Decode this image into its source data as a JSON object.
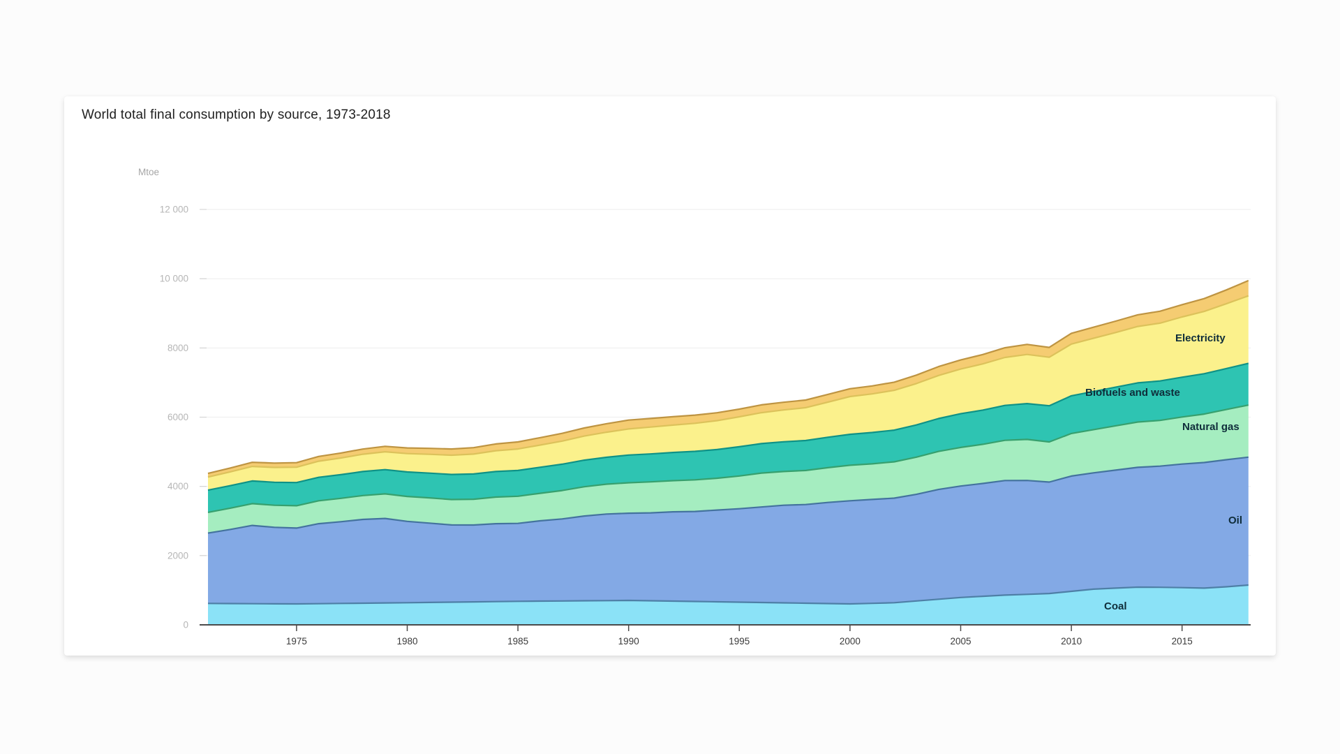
{
  "title": "World total final consumption by source, 1973-2018",
  "chart_data": {
    "type": "area",
    "stacked": true,
    "title": "World total final consumption by source, 1973-2018",
    "unit_label": "Mtoe",
    "grid": "horizontal-only",
    "legend_position": "inline-labels-on-areas",
    "x_start_year": 1971,
    "x_end_year": 2018,
    "xlim": [
      1971,
      2018
    ],
    "ylim": [
      0,
      12600
    ],
    "x_tick_years": [
      1975,
      1980,
      1985,
      1990,
      1995,
      2000,
      2005,
      2010,
      2015
    ],
    "y_ticks": [
      {
        "value": 0,
        "label": "0"
      },
      {
        "value": 2000,
        "label": "2000"
      },
      {
        "value": 4000,
        "label": "4000"
      },
      {
        "value": 6000,
        "label": "6000"
      },
      {
        "value": 8000,
        "label": "8000"
      },
      {
        "value": 10000,
        "label": "10 000"
      },
      {
        "value": 12000,
        "label": "12 000"
      }
    ],
    "years": [
      1971,
      1972,
      1973,
      1974,
      1975,
      1976,
      1977,
      1978,
      1979,
      1980,
      1981,
      1982,
      1983,
      1984,
      1985,
      1986,
      1987,
      1988,
      1989,
      1990,
      1991,
      1992,
      1993,
      1994,
      1995,
      1996,
      1997,
      1998,
      1999,
      2000,
      2001,
      2002,
      2003,
      2004,
      2005,
      2006,
      2007,
      2008,
      2009,
      2010,
      2011,
      2012,
      2013,
      2014,
      2015,
      2016,
      2017,
      2018
    ],
    "series": [
      {
        "name": "Coal",
        "fill": "#8BE2F7",
        "stroke": "#4E7FA6",
        "values": [
          620,
          616,
          612,
          608,
          605,
          612,
          619,
          626,
          633,
          640,
          648,
          656,
          664,
          672,
          680,
          685,
          690,
          695,
          700,
          705,
          695,
          685,
          675,
          665,
          655,
          645,
          635,
          625,
          615,
          605,
          622,
          640,
          690,
          740,
          790,
          825,
          860,
          882,
          905,
          968,
          1030,
          1060,
          1090,
          1085,
          1075,
          1060,
          1100,
          1150
        ]
      },
      {
        "name": "Oil",
        "fill": "#83A9E5",
        "stroke": "#44739E",
        "values": [
          2030,
          2140,
          2260,
          2210,
          2190,
          2310,
          2360,
          2420,
          2440,
          2350,
          2290,
          2230,
          2220,
          2250,
          2250,
          2320,
          2370,
          2450,
          2500,
          2520,
          2540,
          2580,
          2600,
          2650,
          2700,
          2760,
          2820,
          2850,
          2920,
          2980,
          3000,
          3020,
          3080,
          3170,
          3220,
          3260,
          3310,
          3290,
          3220,
          3330,
          3360,
          3410,
          3460,
          3500,
          3570,
          3630,
          3670,
          3695
        ]
      },
      {
        "name": "Natural gas",
        "fill": "#A5EDC0",
        "stroke": "#37A06E",
        "values": [
          600,
          615,
          630,
          638,
          645,
          662,
          675,
          690,
          710,
          720,
          730,
          735,
          745,
          770,
          785,
          795,
          820,
          845,
          865,
          880,
          895,
          900,
          915,
          920,
          945,
          980,
          975,
          985,
          1005,
          1025,
          1030,
          1050,
          1075,
          1100,
          1115,
          1130,
          1160,
          1185,
          1160,
          1230,
          1250,
          1280,
          1310,
          1320,
          1360,
          1400,
          1450,
          1505
        ]
      },
      {
        "name": "Biofuels and waste",
        "fill": "#2EC4B2",
        "stroke": "#0F9287",
        "values": [
          640,
          648,
          655,
          663,
          670,
          678,
          685,
          693,
          700,
          708,
          715,
          723,
          730,
          738,
          745,
          753,
          760,
          768,
          775,
          800,
          808,
          815,
          823,
          830,
          845,
          850,
          858,
          865,
          880,
          895,
          905,
          915,
          930,
          950,
          975,
          990,
          1010,
          1035,
          1045,
          1090,
          1100,
          1115,
          1130,
          1140,
          1150,
          1165,
          1185,
          1205
        ]
      },
      {
        "name": "Electricity",
        "fill": "#FBF18C",
        "stroke": "#DCC25B",
        "values": [
          380,
          400,
          420,
          430,
          445,
          465,
          482,
          500,
          518,
          530,
          545,
          558,
          575,
          600,
          620,
          640,
          668,
          695,
          725,
          755,
          775,
          790,
          810,
          835,
          865,
          895,
          920,
          950,
          1015,
          1090,
          1115,
          1150,
          1195,
          1245,
          1290,
          1335,
          1385,
          1420,
          1400,
          1495,
          1540,
          1580,
          1630,
          1670,
          1740,
          1800,
          1870,
          1950
        ]
      },
      {
        "name": "",
        "fill": "#F5CC72",
        "stroke": "#BE9442",
        "values": [
          105,
          112,
          118,
          124,
          130,
          137,
          143,
          150,
          156,
          162,
          170,
          178,
          186,
          196,
          205,
          215,
          225,
          235,
          245,
          255,
          250,
          242,
          235,
          228,
          222,
          225,
          222,
          220,
          223,
          226,
          230,
          235,
          245,
          255,
          262,
          270,
          280,
          290,
          285,
          310,
          318,
          328,
          338,
          345,
          355,
          370,
          400,
          440
        ]
      }
    ]
  }
}
